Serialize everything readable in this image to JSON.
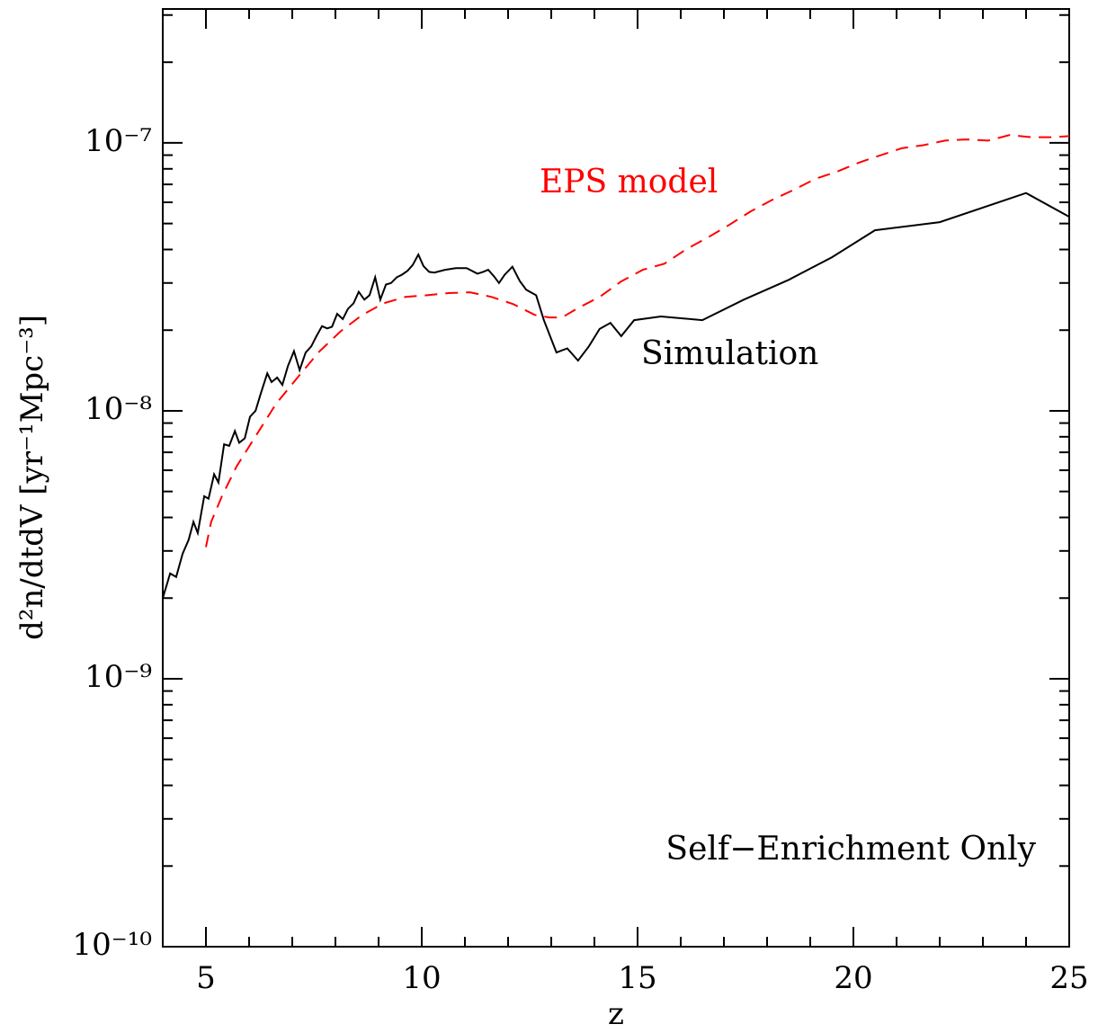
{
  "chart_data": {
    "type": "line",
    "x_label": "z",
    "y_label": "d²n/dtdV [yr⁻¹Mpc⁻³]",
    "xlim": [
      4,
      25
    ],
    "xticks": [
      5,
      10,
      15,
      20,
      25
    ],
    "ylim": [
      1e-10,
      3.16e-07
    ],
    "log_y": true,
    "minor_ticks": true,
    "yticks": [
      {
        "value": 1e-10,
        "label": "10⁻¹⁰"
      },
      {
        "value": 1e-09,
        "label": "10⁻⁹"
      },
      {
        "value": 1e-08,
        "label": "10⁻⁸"
      },
      {
        "value": 1e-07,
        "label": "10⁻⁷"
      }
    ],
    "annotations": [
      {
        "text": "EPS model",
        "color": "#ff0000"
      },
      {
        "text": "Simulation",
        "color": "#000000"
      },
      {
        "text": "Self−Enrichment Only",
        "color": "#000000"
      }
    ],
    "series": [
      {
        "name": "Simulation",
        "color": "#000000",
        "dash": false,
        "x": [
          4.0,
          4.17,
          4.31,
          4.46,
          4.6,
          4.71,
          4.81,
          4.96,
          5.06,
          5.19,
          5.29,
          5.42,
          5.54,
          5.67,
          5.77,
          5.9,
          6.02,
          6.15,
          6.27,
          6.42,
          6.52,
          6.65,
          6.77,
          6.9,
          7.04,
          7.17,
          7.31,
          7.44,
          7.56,
          7.69,
          7.81,
          7.92,
          8.04,
          8.17,
          8.29,
          8.42,
          8.54,
          8.67,
          8.79,
          8.92,
          9.04,
          9.17,
          9.29,
          9.42,
          9.54,
          9.67,
          9.79,
          9.92,
          10.04,
          10.17,
          10.29,
          10.54,
          10.79,
          11.04,
          11.29,
          11.42,
          11.54,
          11.67,
          11.79,
          11.92,
          12.1,
          12.27,
          12.42,
          12.65,
          12.83,
          13.12,
          13.37,
          13.62,
          13.87,
          14.12,
          14.37,
          14.62,
          14.92,
          15.54,
          16.5,
          17.46,
          18.5,
          19.5,
          20.5,
          22.0,
          24.0,
          25.0
        ],
        "values": [
          2e-09,
          2.47e-09,
          2.4e-09,
          2.93e-09,
          3.3e-09,
          3.85e-09,
          3.5e-09,
          4.8e-09,
          4.7e-09,
          5.8e-09,
          5.4e-09,
          7.5e-09,
          7.4e-09,
          8.4e-09,
          7.6e-09,
          7.9e-09,
          9.5e-09,
          1e-08,
          1.16e-08,
          1.38e-08,
          1.28e-08,
          1.33e-08,
          1.25e-08,
          1.47e-08,
          1.67e-08,
          1.42e-08,
          1.65e-08,
          1.74e-08,
          1.9e-08,
          2.07e-08,
          2.03e-08,
          2.06e-08,
          2.3e-08,
          2.2e-08,
          2.4e-08,
          2.52e-08,
          2.78e-08,
          2.6e-08,
          2.7e-08,
          3.15e-08,
          2.6e-08,
          2.96e-08,
          3e-08,
          3.15e-08,
          3.22e-08,
          3.33e-08,
          3.5e-08,
          3.83e-08,
          3.47e-08,
          3.3e-08,
          3.28e-08,
          3.36e-08,
          3.41e-08,
          3.41e-08,
          3.25e-08,
          3.3e-08,
          3.36e-08,
          3.18e-08,
          3e-08,
          3.22e-08,
          3.45e-08,
          3.05e-08,
          2.83e-08,
          2.7e-08,
          2.18e-08,
          1.65e-08,
          1.71e-08,
          1.54e-08,
          1.74e-08,
          2.02e-08,
          2.13e-08,
          1.9e-08,
          2.18e-08,
          2.25e-08,
          2.18e-08,
          2.6e-08,
          3.08e-08,
          3.74e-08,
          4.72e-08,
          5.06e-08,
          6.5e-08,
          5.3e-08
        ]
      },
      {
        "name": "EPS model",
        "color": "#ff0000",
        "dash": true,
        "x": [
          5.0,
          5.12,
          5.37,
          5.71,
          6.12,
          6.62,
          7.12,
          7.62,
          8.12,
          8.62,
          9.12,
          9.62,
          10.12,
          10.62,
          11.12,
          11.62,
          12.12,
          12.62,
          12.96,
          13.25,
          13.62,
          14.12,
          14.62,
          15.12,
          15.62,
          16.12,
          16.62,
          17.12,
          17.62,
          18.12,
          18.62,
          19.12,
          19.62,
          20.12,
          20.62,
          21.12,
          21.62,
          22.12,
          22.62,
          23.12,
          23.62,
          24.12,
          24.62,
          25.0
        ],
        "values": [
          3.1e-09,
          3.85e-09,
          4.8e-09,
          6.2e-09,
          7.9e-09,
          1.06e-08,
          1.33e-08,
          1.66e-08,
          1.98e-08,
          2.28e-08,
          2.52e-08,
          2.66e-08,
          2.7e-08,
          2.75e-08,
          2.77e-08,
          2.66e-08,
          2.5e-08,
          2.28e-08,
          2.23e-08,
          2.23e-08,
          2.42e-08,
          2.66e-08,
          3.04e-08,
          3.36e-08,
          3.54e-08,
          4e-08,
          4.43e-08,
          4.94e-08,
          5.55e-08,
          6.13e-08,
          6.68e-08,
          7.34e-08,
          7.81e-08,
          8.43e-08,
          8.98e-08,
          9.55e-08,
          9.8e-08,
          1.02e-07,
          1.03e-07,
          1.02e-07,
          1.07e-07,
          1.05e-07,
          1.05e-07,
          1.06e-07
        ]
      }
    ]
  }
}
